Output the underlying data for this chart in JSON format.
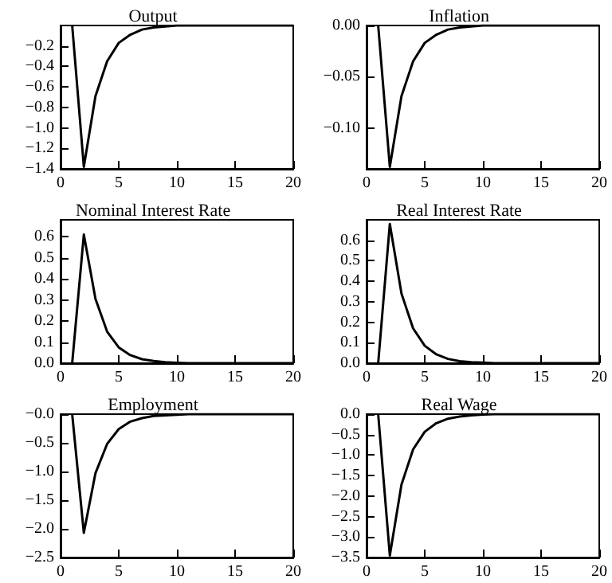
{
  "chart_data": [
    {
      "type": "line",
      "title": "Output",
      "x": [
        1,
        2,
        3,
        4,
        5,
        6,
        7,
        8,
        9,
        10,
        11,
        12,
        13,
        14,
        15,
        16,
        17,
        18,
        19,
        20
      ],
      "series": [
        {
          "color": "#000000",
          "values": [
            0,
            -1.38,
            -0.69,
            -0.35,
            -0.17,
            -0.09,
            -0.04,
            -0.02,
            -0.01,
            0,
            0,
            0,
            0,
            0,
            0,
            0,
            0,
            0,
            0,
            0
          ]
        }
      ],
      "xlim": [
        0,
        20
      ],
      "xticks": [
        0,
        5,
        10,
        15,
        20
      ],
      "ylim": [
        -1.4,
        0
      ],
      "yticks": [
        {
          "value": -1.4,
          "label": "−1.4"
        },
        {
          "value": -1.2,
          "label": "−1.2"
        },
        {
          "value": -1.0,
          "label": "−1.0"
        },
        {
          "value": -0.8,
          "label": "−0.8"
        },
        {
          "value": -0.6,
          "label": "−0.6"
        },
        {
          "value": -0.4,
          "label": "−0.4"
        },
        {
          "value": -0.2,
          "label": "−0.2"
        }
      ],
      "marker": "none",
      "line_style": "solid"
    },
    {
      "type": "line",
      "title": "Inflation",
      "x": [
        1,
        2,
        3,
        4,
        5,
        6,
        7,
        8,
        9,
        10,
        11,
        12,
        13,
        14,
        15,
        16,
        17,
        18,
        19,
        20
      ],
      "series": [
        {
          "color": "#000000",
          "values": [
            0,
            -0.138,
            -0.069,
            -0.035,
            -0.017,
            -0.009,
            -0.004,
            -0.002,
            -0.001,
            0,
            0,
            0,
            0,
            0,
            0,
            0,
            0,
            0,
            0,
            0
          ]
        }
      ],
      "xlim": [
        0,
        20
      ],
      "xticks": [
        0,
        5,
        10,
        15,
        20
      ],
      "ylim": [
        -0.14,
        0
      ],
      "yticks": [
        {
          "value": -0.1,
          "label": "−0.10"
        },
        {
          "value": -0.05,
          "label": "−0.05"
        },
        {
          "value": 0,
          "label": "0.00"
        }
      ],
      "marker": "none",
      "line_style": "solid"
    },
    {
      "type": "line",
      "title": "Nominal Interest Rate",
      "x": [
        1,
        2,
        3,
        4,
        5,
        6,
        7,
        8,
        9,
        10,
        11,
        12,
        13,
        14,
        15,
        16,
        17,
        18,
        19,
        20
      ],
      "series": [
        {
          "color": "#000000",
          "values": [
            0,
            0.61,
            0.305,
            0.15,
            0.075,
            0.038,
            0.019,
            0.01,
            0.005,
            0.002,
            0,
            0,
            0,
            0,
            0,
            0,
            0,
            0,
            0,
            0
          ]
        }
      ],
      "xlim": [
        0,
        20
      ],
      "xticks": [
        0,
        5,
        10,
        15,
        20
      ],
      "ylim": [
        0,
        0.68
      ],
      "yticks": [
        {
          "value": 0,
          "label": "0.0"
        },
        0.1,
        0.2,
        0.3,
        0.4,
        0.5,
        0.6
      ],
      "marker": "none",
      "line_style": "solid"
    },
    {
      "type": "line",
      "title": "Real Interest Rate",
      "x": [
        1,
        2,
        3,
        4,
        5,
        6,
        7,
        8,
        9,
        10,
        11,
        12,
        13,
        14,
        15,
        16,
        17,
        18,
        19,
        20
      ],
      "series": [
        {
          "color": "#000000",
          "values": [
            0,
            0.68,
            0.34,
            0.17,
            0.085,
            0.043,
            0.021,
            0.01,
            0.005,
            0.003,
            0,
            0,
            0,
            0,
            0,
            0,
            0,
            0,
            0,
            0
          ]
        }
      ],
      "xlim": [
        0,
        20
      ],
      "xticks": [
        0,
        5,
        10,
        15,
        20
      ],
      "ylim": [
        0,
        0.7
      ],
      "yticks": [
        {
          "value": 0,
          "label": "0.0"
        },
        0.1,
        0.2,
        0.3,
        0.4,
        0.5,
        0.6
      ],
      "marker": "none",
      "line_style": "solid"
    },
    {
      "type": "line",
      "title": "Employment",
      "x": [
        1,
        2,
        3,
        4,
        5,
        6,
        7,
        8,
        9,
        10,
        11,
        12,
        13,
        14,
        15,
        16,
        17,
        18,
        19,
        20
      ],
      "series": [
        {
          "color": "#000000",
          "values": [
            0,
            -2.07,
            -1.03,
            -0.52,
            -0.26,
            -0.13,
            -0.07,
            -0.03,
            -0.02,
            -0.01,
            0,
            0,
            0,
            0,
            0,
            0,
            0,
            0,
            0,
            0
          ]
        }
      ],
      "xlim": [
        0,
        20
      ],
      "xticks": [
        0,
        5,
        10,
        15,
        20
      ],
      "ylim": [
        -2.5,
        0
      ],
      "yticks": [
        {
          "value": -2.5,
          "label": "−2.5"
        },
        {
          "value": -2.0,
          "label": "−2.0"
        },
        {
          "value": -1.5,
          "label": "−1.5"
        },
        {
          "value": -1.0,
          "label": "−1.0"
        },
        {
          "value": -0.5,
          "label": "−0.5"
        },
        {
          "value": 0,
          "label": "−0.0"
        }
      ],
      "marker": "none",
      "line_style": "solid"
    },
    {
      "type": "line",
      "title": "Real Wage",
      "x": [
        1,
        2,
        3,
        4,
        5,
        6,
        7,
        8,
        9,
        10,
        11,
        12,
        13,
        14,
        15,
        16,
        17,
        18,
        19,
        20
      ],
      "series": [
        {
          "color": "#000000",
          "values": [
            0,
            -3.45,
            -1.72,
            -0.86,
            -0.43,
            -0.22,
            -0.11,
            -0.06,
            -0.03,
            -0.01,
            0,
            0,
            0,
            0,
            0,
            0,
            0,
            0,
            0,
            0
          ]
        }
      ],
      "xlim": [
        0,
        20
      ],
      "xticks": [
        0,
        5,
        10,
        15,
        20
      ],
      "ylim": [
        -3.5,
        0
      ],
      "yticks": [
        {
          "value": -3.5,
          "label": "−3.5"
        },
        {
          "value": -3.0,
          "label": "−3.0"
        },
        {
          "value": -2.5,
          "label": "−2.5"
        },
        {
          "value": -2.0,
          "label": "−2.0"
        },
        {
          "value": -1.5,
          "label": "−1.5"
        },
        {
          "value": -1.0,
          "label": "−1.0"
        },
        {
          "value": -0.5,
          "label": "−0.5"
        },
        {
          "value": 0,
          "label": "0.0"
        }
      ],
      "marker": "none",
      "line_style": "solid"
    }
  ]
}
